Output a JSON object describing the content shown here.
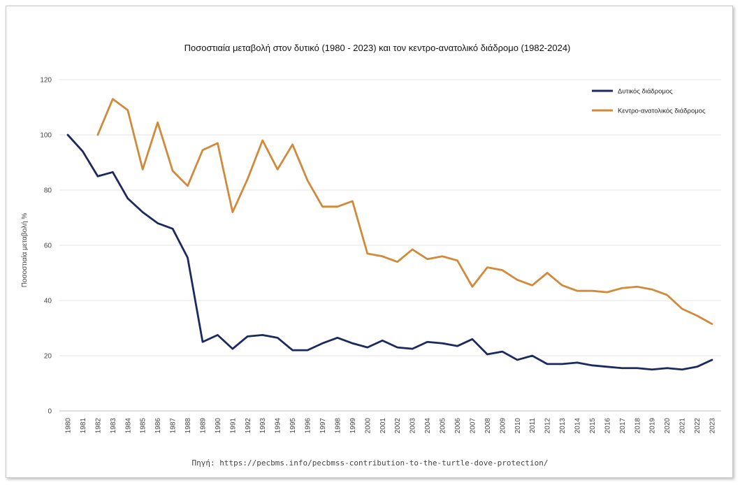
{
  "chart_data": {
    "type": "line",
    "title": "Ποσοστιαία μεταβολή στον δυτικό (1980 - 2023) και τον κεντρο-ανατολικό διάδρομο (1982-2024)",
    "xlabel": "",
    "ylabel": "Ποσοστιαία μεταβολή %",
    "ylim": [
      0,
      120
    ],
    "yticks": [
      "0",
      "20",
      "40",
      "60",
      "80",
      "100",
      "120"
    ],
    "grid": true,
    "legend_position": "top-right",
    "x": [
      "1980",
      "1981",
      "1982",
      "1983",
      "1984",
      "1985",
      "1986",
      "1987",
      "1988",
      "1989",
      "1990",
      "1991",
      "1992",
      "1993",
      "1994",
      "1995",
      "1996",
      "1997",
      "1998",
      "1999",
      "2000",
      "2001",
      "2002",
      "2003",
      "2004",
      "2005",
      "2006",
      "2007",
      "2008",
      "2009",
      "2010",
      "2011",
      "2012",
      "2013",
      "2014",
      "2015",
      "2016",
      "2017",
      "2018",
      "2019",
      "2020",
      "2021",
      "2022",
      "2023"
    ],
    "series": [
      {
        "name": "Δυτικός διάδρομος",
        "color": "#1a2a5e",
        "values": [
          100,
          94,
          85,
          86.5,
          77,
          72,
          68,
          66,
          55.5,
          25,
          27.5,
          22.5,
          27,
          27.5,
          26.5,
          22,
          22,
          24.5,
          26.5,
          24.5,
          23,
          25.5,
          23,
          22.5,
          25,
          24.5,
          23.5,
          26,
          20.5,
          21.5,
          18.5,
          20,
          17,
          17,
          17.5,
          16.5,
          16,
          15.5,
          15.5,
          15,
          15.5,
          15,
          16,
          18.5
        ]
      },
      {
        "name": "Κεντρο-ανατολικός διάδρομος",
        "color": "#d1893a",
        "values": [
          null,
          null,
          100,
          113,
          109,
          87.5,
          104.5,
          87,
          81.5,
          94.5,
          97,
          72,
          84,
          98,
          87.5,
          96.5,
          83.5,
          74,
          74,
          76,
          57,
          56,
          54,
          58.5,
          55,
          56,
          54.5,
          45,
          52,
          51,
          47.5,
          45.5,
          50,
          45.5,
          43.5,
          43.5,
          43,
          44.5,
          45,
          44,
          42,
          37,
          34.5,
          31.5
        ]
      }
    ]
  },
  "source": "Πηγή: https://pecbms.info/pecbmss-contribution-to-the-turtle-dove-protection/"
}
